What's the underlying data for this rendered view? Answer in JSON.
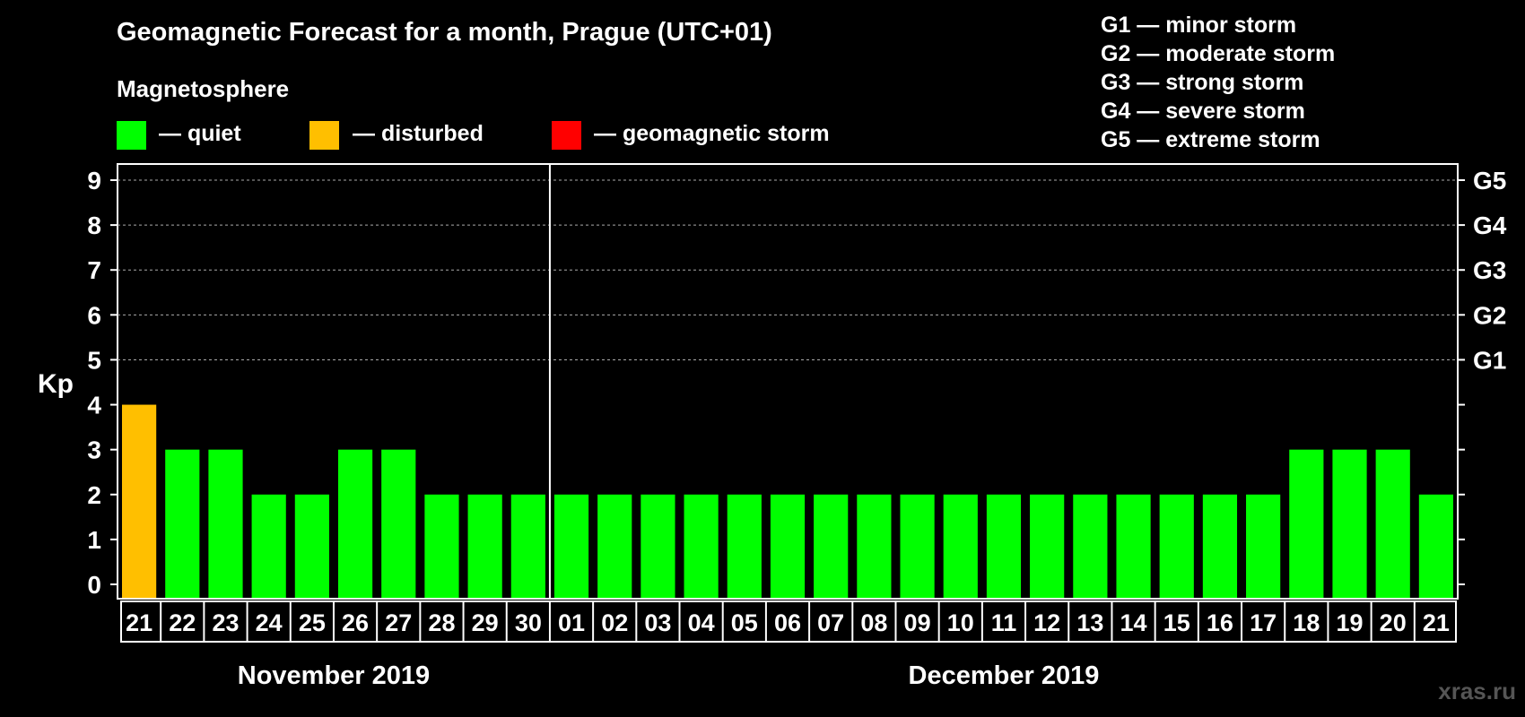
{
  "chart_data": {
    "type": "bar",
    "title": "Geomagnetic Forecast for a month, Prague (UTC+01)",
    "legend_heading": "Magnetosphere",
    "legend": [
      {
        "label": "— quiet",
        "color": "#00ff00"
      },
      {
        "label": "— disturbed",
        "color": "#ffbf00"
      },
      {
        "label": "— geomagnetic storm",
        "color": "#ff0000"
      }
    ],
    "storm_scale": [
      "G1 — minor storm",
      "G2 — moderate storm",
      "G3 — strong storm",
      "G4 — severe storm",
      "G5 — extreme storm"
    ],
    "ylabel": "Kp",
    "ylim": [
      0,
      9
    ],
    "y_ticks": [
      "0",
      "1",
      "2",
      "3",
      "4",
      "5",
      "6",
      "7",
      "8",
      "9"
    ],
    "right_axis": [
      {
        "kp": 5,
        "label": "G1"
      },
      {
        "kp": 6,
        "label": "G2"
      },
      {
        "kp": 7,
        "label": "G3"
      },
      {
        "kp": 8,
        "label": "G4"
      },
      {
        "kp": 9,
        "label": "G5"
      }
    ],
    "grid": "dashed horizontal at Kp 5-9",
    "categories": [
      "21",
      "22",
      "23",
      "24",
      "25",
      "26",
      "27",
      "28",
      "29",
      "30",
      "01",
      "02",
      "03",
      "04",
      "05",
      "06",
      "07",
      "08",
      "09",
      "10",
      "11",
      "12",
      "13",
      "14",
      "15",
      "16",
      "17",
      "18",
      "19",
      "20",
      "21"
    ],
    "values": [
      4,
      3,
      3,
      2,
      2,
      3,
      3,
      2,
      2,
      2,
      2,
      2,
      2,
      2,
      2,
      2,
      2,
      2,
      2,
      2,
      2,
      2,
      2,
      2,
      2,
      2,
      2,
      3,
      3,
      3,
      2
    ],
    "months": [
      {
        "label": "November 2019",
        "start_index": 0,
        "count": 10
      },
      {
        "label": "December 2019",
        "start_index": 10,
        "count": 21
      }
    ],
    "colors": {
      "quiet": "#00ff00",
      "disturbed": "#ffbf00",
      "storm": "#ff0000"
    }
  },
  "watermark": "xras.ru"
}
